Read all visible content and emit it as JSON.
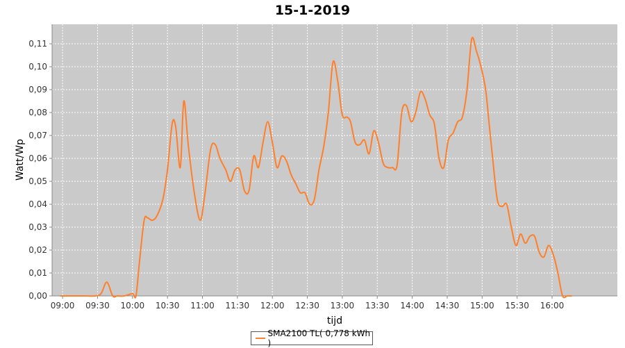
{
  "chart_data": {
    "type": "line",
    "title": "15-1-2019",
    "xlabel": "tijd",
    "ylabel": "Watt/Wp",
    "x_tick_labels": [
      "09:00",
      "09:30",
      "10:00",
      "10:30",
      "11:00",
      "11:30",
      "12:00",
      "12:30",
      "13:00",
      "13:30",
      "14:00",
      "14:30",
      "15:00",
      "15:30",
      "16:00"
    ],
    "y_tick_labels": [
      "0,00",
      "0,01",
      "0,02",
      "0,03",
      "0,04",
      "0,05",
      "0,06",
      "0,07",
      "0,08",
      "0,09",
      "0,10",
      "0,11"
    ],
    "xlim": [
      "08:51",
      "16:56"
    ],
    "ylim": [
      0,
      0.1185
    ],
    "grid": true,
    "legend_position": "bottom-center",
    "series": [
      {
        "name": "SMA2100 TL( 0,778 kWh )",
        "color": "#ff7f2a",
        "x": [
          "08:58",
          "09:10",
          "09:20",
          "09:28",
          "09:33",
          "09:38",
          "09:43",
          "09:47",
          "09:53",
          "10:00",
          "10:03",
          "10:06",
          "10:10",
          "10:13",
          "10:17",
          "10:21",
          "10:26",
          "10:30",
          "10:34",
          "10:37",
          "10:41",
          "10:44",
          "10:48",
          "10:53",
          "10:58",
          "11:02",
          "11:07",
          "11:11",
          "11:15",
          "11:20",
          "11:24",
          "11:28",
          "11:32",
          "11:36",
          "11:40",
          "11:44",
          "11:48",
          "11:52",
          "11:56",
          "12:00",
          "12:04",
          "12:08",
          "12:12",
          "12:16",
          "12:20",
          "12:24",
          "12:28",
          "12:32",
          "12:36",
          "12:40",
          "12:44",
          "12:48",
          "12:52",
          "12:56",
          "13:00",
          "13:04",
          "13:07",
          "13:11",
          "13:15",
          "13:19",
          "13:23",
          "13:27",
          "13:31",
          "13:35",
          "13:39",
          "13:43",
          "13:47",
          "13:51",
          "13:55",
          "13:59",
          "14:03",
          "14:07",
          "14:11",
          "14:15",
          "14:19",
          "14:23",
          "14:27",
          "14:31",
          "14:35",
          "14:39",
          "14:43",
          "14:47",
          "14:51",
          "14:55",
          "14:59",
          "15:03",
          "15:06",
          "15:09",
          "15:13",
          "15:17",
          "15:21",
          "15:25",
          "15:29",
          "15:33",
          "15:37",
          "15:41",
          "15:45",
          "15:49",
          "15:53",
          "15:57",
          "16:01",
          "16:05",
          "16:09",
          "16:13",
          "16:17"
        ],
        "y": [
          0,
          0,
          0,
          0,
          0.001,
          0.006,
          0,
          0,
          0,
          0.001,
          0,
          0.015,
          0.033,
          0.034,
          0.033,
          0.035,
          0.042,
          0.055,
          0.075,
          0.074,
          0.056,
          0.085,
          0.065,
          0.045,
          0.033,
          0.044,
          0.064,
          0.066,
          0.06,
          0.055,
          0.05,
          0.055,
          0.055,
          0.046,
          0.046,
          0.061,
          0.056,
          0.067,
          0.076,
          0.067,
          0.056,
          0.061,
          0.059,
          0.053,
          0.049,
          0.045,
          0.045,
          0.04,
          0.042,
          0.055,
          0.065,
          0.08,
          0.102,
          0.094,
          0.079,
          0.078,
          0.076,
          0.067,
          0.066,
          0.068,
          0.062,
          0.072,
          0.067,
          0.058,
          0.056,
          0.056,
          0.057,
          0.08,
          0.083,
          0.076,
          0.08,
          0.089,
          0.086,
          0.079,
          0.075,
          0.06,
          0.056,
          0.068,
          0.071,
          0.076,
          0.078,
          0.09,
          0.112,
          0.107,
          0.1,
          0.09,
          0.075,
          0.06,
          0.042,
          0.039,
          0.04,
          0.03,
          0.022,
          0.027,
          0.023,
          0.026,
          0.026,
          0.019,
          0.017,
          0.022,
          0.018,
          0.01,
          0,
          0,
          0
        ]
      }
    ]
  }
}
